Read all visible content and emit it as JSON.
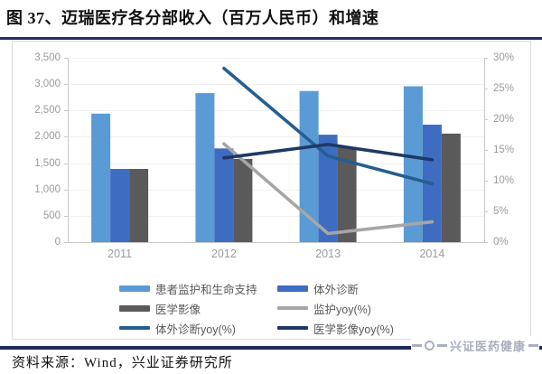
{
  "page": {
    "title": "图 37、迈瑞医疗各分部收入（百万人民币）和增速",
    "source_note": "资料来源：Wind，兴业证券研究所",
    "watermark": "兴证医药健康"
  },
  "colors": {
    "rule_navy": "#1F2C5C",
    "frame_border": "#DCDCDC",
    "grid": "#F1F1F1",
    "axis_line": "#C8C8C8",
    "axis_text": "#9B9B9B",
    "legend_text": "#595959",
    "watermark_gray": "#A9AFBC"
  },
  "chart_data": {
    "type": "bar",
    "subtype": "grouped bars (left axis, revenue in million RMB) + yoy lines (right axis, %)",
    "title": "迈瑞医疗各分部收入（百万人民币）和增速",
    "categories": [
      "2011",
      "2012",
      "2013",
      "2014"
    ],
    "bar_series": [
      {
        "name": "患者监护和生命支持",
        "color": "#5B9BD5",
        "values": [
          2440,
          2830,
          2870,
          2960
        ]
      },
      {
        "name": "体外诊断",
        "color": "#3E6CC0",
        "values": [
          1390,
          1780,
          2040,
          2230
        ]
      },
      {
        "name": "医学影像",
        "color": "#5A5A5A",
        "values": [
          1390,
          1580,
          1800,
          2060
        ]
      }
    ],
    "line_series": [
      {
        "name": "监护yoy(%)",
        "color": "#A6A6A6",
        "values": [
          null,
          16.0,
          1.4,
          3.3
        ]
      },
      {
        "name": "体外诊断yoy(%)",
        "color": "#255E91",
        "values": [
          null,
          28.3,
          14.0,
          9.5
        ]
      },
      {
        "name": "医学影像yoy(%)",
        "color": "#1F3864",
        "values": [
          null,
          13.7,
          15.9,
          13.4
        ]
      }
    ],
    "left_axis": {
      "min": 0,
      "max": 3500,
      "tick_step": 500,
      "ticks": [
        "3,500",
        "3,000",
        "2,500",
        "2,000",
        "1,500",
        "1,000",
        "500",
        "0"
      ]
    },
    "right_axis": {
      "min": 0,
      "max": 30,
      "tick_step": 5,
      "ticks": [
        "30%",
        "25%",
        "20%",
        "15%",
        "10%",
        "5%",
        "0%"
      ]
    },
    "grid": "faint horizontal gridlines",
    "legend_position": "bottom"
  },
  "legend": {
    "items": [
      {
        "swatch": "bar",
        "color": "#5B9BD5",
        "label": "患者监护和生命支持"
      },
      {
        "swatch": "bar",
        "color": "#3E6CC0",
        "label": "体外诊断"
      },
      {
        "swatch": "bar",
        "color": "#5A5A5A",
        "label": "医学影像"
      },
      {
        "swatch": "line",
        "color": "#A6A6A6",
        "label": "监护yoy(%)"
      },
      {
        "swatch": "line",
        "color": "#255E91",
        "label": "体外诊断yoy(%)"
      },
      {
        "swatch": "line",
        "color": "#1F3864",
        "label": "医学影像yoy(%)"
      }
    ]
  }
}
